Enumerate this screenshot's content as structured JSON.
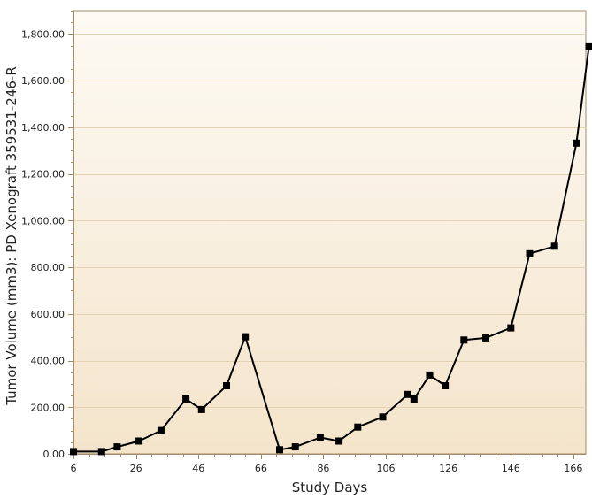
{
  "chart_data": {
    "type": "line",
    "title": "",
    "xlabel": "Study Days",
    "ylabel": "Tumor Volume (mm3): PD Xenograft 359531-246-R",
    "xlim": [
      6,
      170
    ],
    "ylim": [
      0,
      1900
    ],
    "x_ticks": [
      6,
      26,
      46,
      66,
      86,
      106,
      126,
      146,
      166
    ],
    "x_tick_labels": [
      "6",
      "26",
      "46",
      "66",
      "86",
      "106",
      "126",
      "146",
      "166"
    ],
    "y_ticks": [
      0,
      200,
      400,
      600,
      800,
      1000,
      1200,
      1400,
      1600,
      1800
    ],
    "y_tick_labels": [
      "0.00",
      "200.00",
      "400.00",
      "600.00",
      "800.00",
      "1,000.00",
      "1,200.00",
      "1,400.00",
      "1,600.00",
      "1,800.00"
    ],
    "grid": true,
    "series": [
      {
        "x": [
          6,
          15,
          20,
          27,
          34,
          42,
          47,
          55,
          61,
          72,
          77,
          85,
          91,
          97,
          105,
          113,
          115,
          120,
          125,
          131,
          138,
          146,
          152,
          160,
          167,
          171
        ],
        "y": [
          10,
          10,
          30,
          55,
          100,
          235,
          190,
          292,
          502,
          18,
          30,
          70,
          55,
          115,
          158,
          255,
          235,
          338,
          292,
          488,
          497,
          540,
          858,
          890,
          1332,
          1745
        ]
      }
    ],
    "colors": {
      "line": "#000000",
      "marker": "#000000",
      "plot_bg_top": "#fdfaf4",
      "plot_bg_bottom": "#f4e4cb",
      "grid": "#e3d2b3",
      "axis": "#a58a6a"
    }
  }
}
